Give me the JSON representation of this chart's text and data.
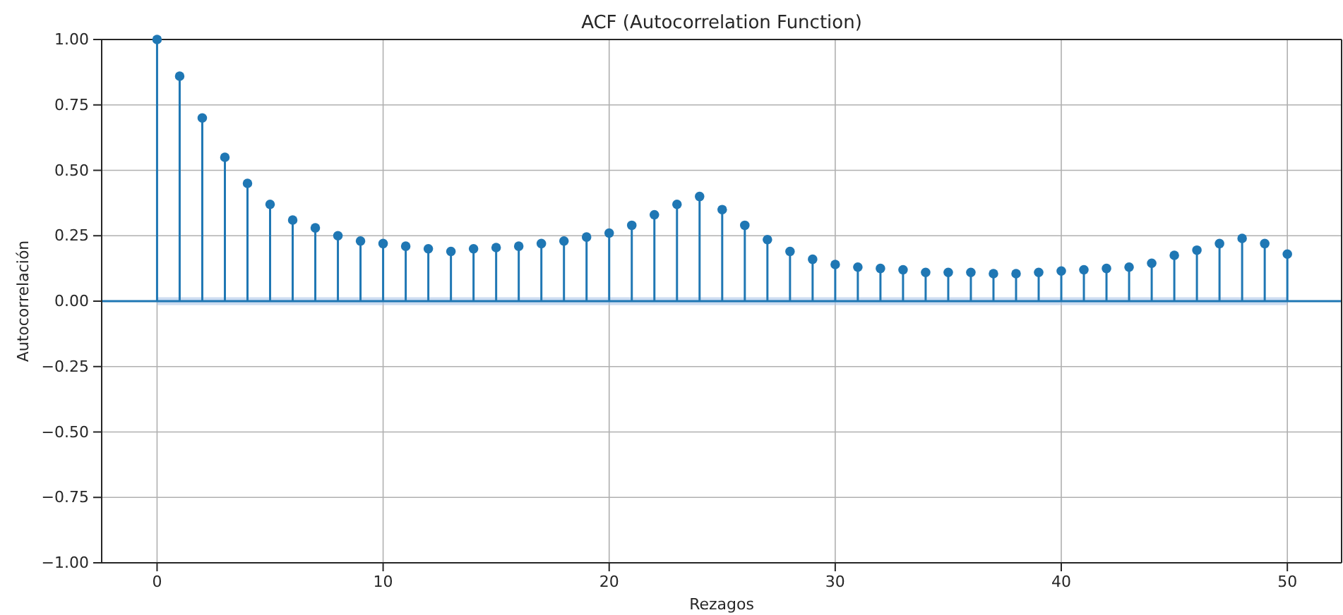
{
  "chart_data": {
    "type": "lollipop",
    "title": "ACF (Autocorrelation Function)",
    "xlabel": "Rezagos",
    "ylabel": "Autocorrelación",
    "x": [
      0,
      1,
      2,
      3,
      4,
      5,
      6,
      7,
      8,
      9,
      10,
      11,
      12,
      13,
      14,
      15,
      16,
      17,
      18,
      19,
      20,
      21,
      22,
      23,
      24,
      25,
      26,
      27,
      28,
      29,
      30,
      31,
      32,
      33,
      34,
      35,
      36,
      37,
      38,
      39,
      40,
      41,
      42,
      43,
      44,
      45,
      46,
      47,
      48,
      49,
      50
    ],
    "values": [
      1.0,
      0.86,
      0.7,
      0.55,
      0.45,
      0.37,
      0.31,
      0.28,
      0.25,
      0.23,
      0.22,
      0.21,
      0.2,
      0.19,
      0.2,
      0.205,
      0.21,
      0.22,
      0.23,
      0.245,
      0.26,
      0.29,
      0.33,
      0.37,
      0.4,
      0.35,
      0.29,
      0.235,
      0.19,
      0.16,
      0.14,
      0.13,
      0.125,
      0.12,
      0.11,
      0.11,
      0.11,
      0.105,
      0.105,
      0.11,
      0.115,
      0.12,
      0.125,
      0.13,
      0.145,
      0.175,
      0.195,
      0.22,
      0.24,
      0.22,
      0.18
    ],
    "color": "#1f77b4",
    "marker": "circle",
    "xlim": [
      -2.45,
      52.4
    ],
    "xticks": [
      0,
      10,
      20,
      30,
      40,
      50
    ],
    "ylim": [
      -1,
      1
    ],
    "yticks": [
      {
        "value": -1,
        "label": "−1.00"
      },
      {
        "value": -0.75,
        "label": "−0.75"
      },
      {
        "value": -0.5,
        "label": "−0.50"
      },
      {
        "value": -0.25,
        "label": "−0.25"
      },
      {
        "value": 0,
        "label": "0.00"
      },
      {
        "value": 0.25,
        "label": "0.25"
      },
      {
        "value": 0.5,
        "label": "0.50"
      },
      {
        "value": 0.75,
        "label": "0.75"
      },
      {
        "value": 1,
        "label": "1.00"
      }
    ],
    "grid": true,
    "ref_lines": [
      {
        "axis": "y",
        "value": 0,
        "color": "#1f77b4"
      }
    ],
    "bands": [
      {
        "axis": "y",
        "from": -0.015,
        "to": 0.015,
        "color": "#aec7e8"
      }
    ]
  }
}
